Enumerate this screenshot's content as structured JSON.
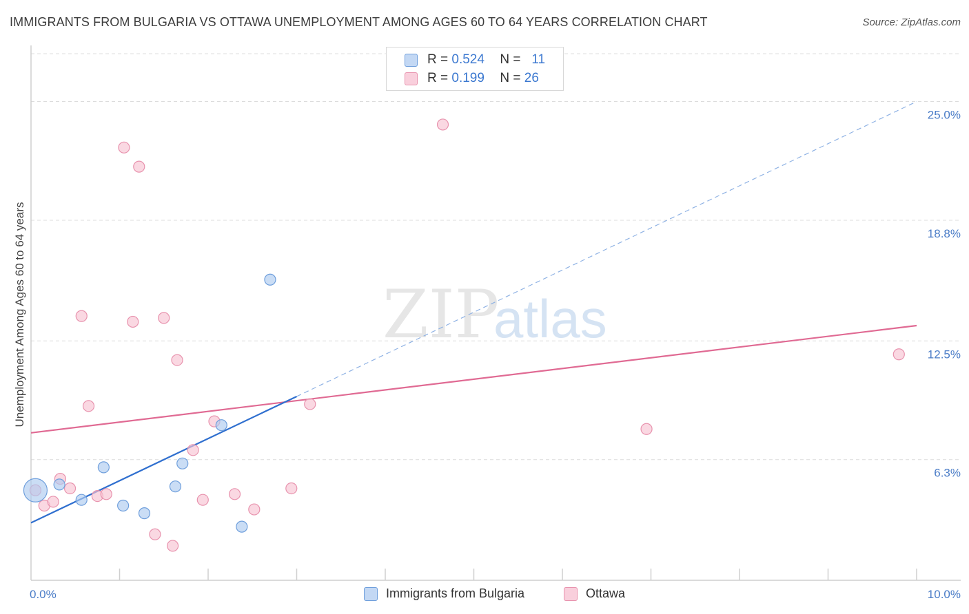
{
  "title": "IMMIGRANTS FROM BULGARIA VS OTTAWA UNEMPLOYMENT AMONG AGES 60 TO 64 YEARS CORRELATION CHART",
  "source": "Source: ZipAtlas.com",
  "watermark": {
    "zip": "ZIP",
    "atlas": "atlas"
  },
  "legend": {
    "rows": [
      {
        "r_label": "R =",
        "r_value": "0.524",
        "n_label": "N =",
        "n_value": "11"
      },
      {
        "r_label": "R =",
        "r_value": "0.199",
        "n_label": "N =",
        "n_value": "26"
      }
    ]
  },
  "colors": {
    "blue_fill": "#aecbf0",
    "blue_stroke": "#6f9fdc",
    "blue_line": "#2f6fcf",
    "pink_fill": "#f8c3d3",
    "pink_stroke": "#e893ae",
    "pink_line": "#e06a93",
    "grid": "#dcdcdc",
    "tick_text": "#4a7cc7"
  },
  "chart_data": {
    "type": "scatter",
    "title": "IMMIGRANTS FROM BULGARIA VS OTTAWA UNEMPLOYMENT AMONG AGES 60 TO 64 YEARS CORRELATION CHART",
    "xlabel": "",
    "ylabel": "Unemployment Among Ages 60 to 64 years",
    "xlim": [
      0,
      10
    ],
    "ylim": [
      0,
      27.5
    ],
    "x_tick_labels": [
      {
        "value": 0,
        "label": "0.0%"
      },
      {
        "value": 10,
        "label": "10.0%"
      }
    ],
    "y_ticks": [
      {
        "value": 6.3,
        "label": "6.3%"
      },
      {
        "value": 12.5,
        "label": "12.5%"
      },
      {
        "value": 18.8,
        "label": "18.8%"
      },
      {
        "value": 25.0,
        "label": "25.0%"
      }
    ],
    "grid": true,
    "series": [
      {
        "name": "Immigrants from Bulgaria",
        "color": "blue",
        "points": [
          {
            "x": 0.05,
            "y": 4.7,
            "size": "large"
          },
          {
            "x": 0.32,
            "y": 5.0
          },
          {
            "x": 0.57,
            "y": 4.2
          },
          {
            "x": 0.82,
            "y": 5.9
          },
          {
            "x": 1.04,
            "y": 3.9
          },
          {
            "x": 1.28,
            "y": 3.5
          },
          {
            "x": 1.63,
            "y": 4.9
          },
          {
            "x": 1.71,
            "y": 6.1
          },
          {
            "x": 2.15,
            "y": 8.1
          },
          {
            "x": 2.38,
            "y": 2.8
          },
          {
            "x": 2.7,
            "y": 15.7
          }
        ],
        "trend": {
          "x0": 0.0,
          "y0": 3.0,
          "x1": 3.0,
          "y1": 9.6,
          "dashed_to_x": 10.0,
          "dashed_to_y": 25.0
        }
      },
      {
        "name": "Ottawa",
        "color": "pink",
        "points": [
          {
            "x": 0.05,
            "y": 4.7
          },
          {
            "x": 0.15,
            "y": 3.9
          },
          {
            "x": 0.25,
            "y": 4.1
          },
          {
            "x": 0.33,
            "y": 5.3
          },
          {
            "x": 0.44,
            "y": 4.8
          },
          {
            "x": 0.57,
            "y": 13.8
          },
          {
            "x": 0.65,
            "y": 9.1
          },
          {
            "x": 0.75,
            "y": 4.4
          },
          {
            "x": 0.85,
            "y": 4.5
          },
          {
            "x": 1.05,
            "y": 22.6
          },
          {
            "x": 1.15,
            "y": 13.5
          },
          {
            "x": 1.22,
            "y": 21.6
          },
          {
            "x": 1.4,
            "y": 2.4
          },
          {
            "x": 1.5,
            "y": 13.7
          },
          {
            "x": 1.6,
            "y": 1.8
          },
          {
            "x": 1.65,
            "y": 11.5
          },
          {
            "x": 1.83,
            "y": 6.8
          },
          {
            "x": 1.94,
            "y": 4.2
          },
          {
            "x": 2.07,
            "y": 8.3
          },
          {
            "x": 2.3,
            "y": 4.5
          },
          {
            "x": 2.52,
            "y": 3.7
          },
          {
            "x": 2.94,
            "y": 4.8
          },
          {
            "x": 3.15,
            "y": 9.2
          },
          {
            "x": 4.65,
            "y": 23.8
          },
          {
            "x": 6.95,
            "y": 7.9
          },
          {
            "x": 9.8,
            "y": 11.8
          }
        ],
        "trend": {
          "x0": 0.0,
          "y0": 7.7,
          "x1": 10.0,
          "y1": 13.3
        }
      }
    ]
  },
  "bottom_legend": {
    "series_a": "Immigrants from Bulgaria",
    "series_b": "Ottawa"
  }
}
